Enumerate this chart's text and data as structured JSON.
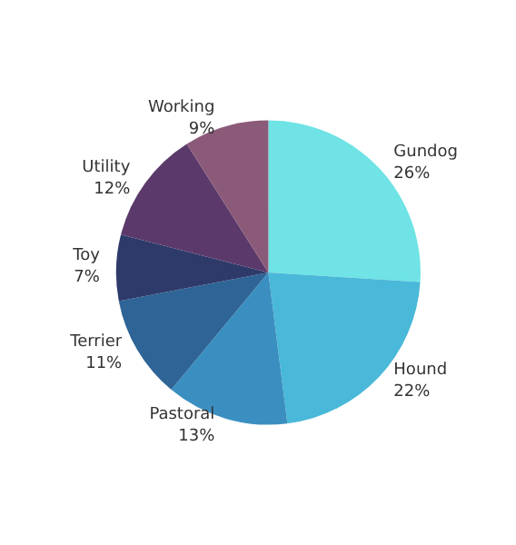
{
  "chart_data": {
    "type": "pie",
    "categories": [
      "Gundog",
      "Hound",
      "Pastoral",
      "Terrier",
      "Toy",
      "Utility",
      "Working"
    ],
    "values": [
      26,
      22,
      13,
      11,
      7,
      12,
      9
    ],
    "value_labels": [
      "26%",
      "22%",
      "13%",
      "11%",
      "7%",
      "12%",
      "9%"
    ],
    "colors": [
      "#6fe3e5",
      "#4ab8d8",
      "#3a8fc0",
      "#2e6496",
      "#2d3a6a",
      "#5b3a6b",
      "#8b5a78"
    ]
  }
}
